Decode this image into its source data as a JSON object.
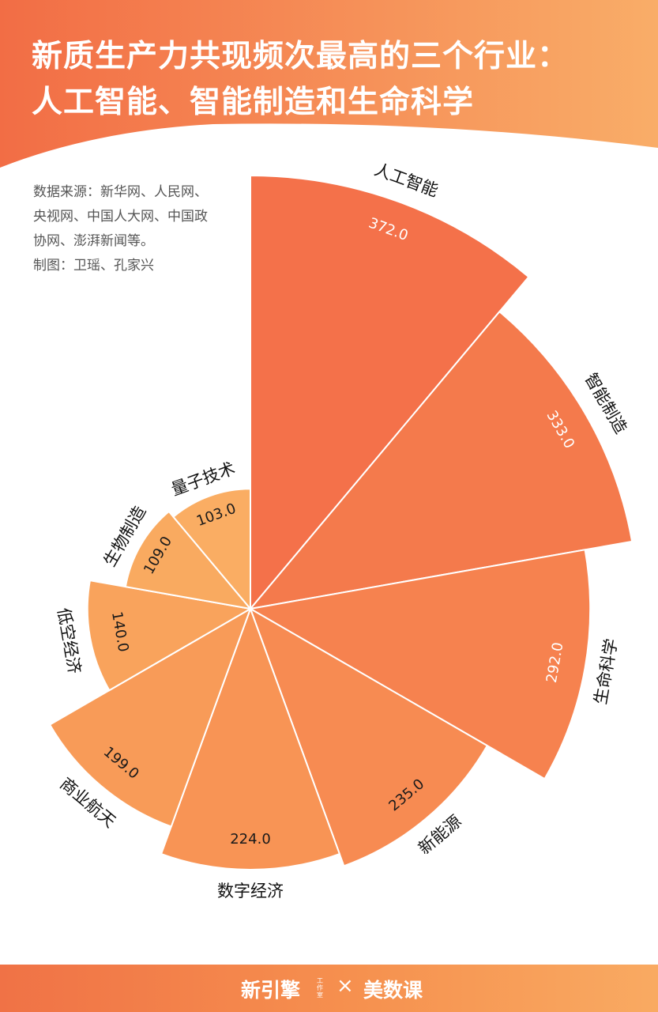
{
  "header": {
    "title_line1": "新质生产力共现频次最高的三个行业：",
    "title_line2": "人工智能、智能制造和生命科学",
    "gradient_start": "#f26d45",
    "gradient_end": "#f9ad68"
  },
  "source_note": {
    "lines": [
      "数据来源：新华网、人民网、央视网、中国人大网、中国政协网、澎湃新闻等。",
      "制图：卫瑶、孔家兴"
    ]
  },
  "chart_data": {
    "type": "nightingale-rose",
    "categories": [
      "人工智能",
      "智能制造",
      "生命科学",
      "新能源",
      "数字经济",
      "商业航天",
      "低空经济",
      "生物制造",
      "量子技术"
    ],
    "values": [
      372.0,
      333.0,
      292.0,
      235.0,
      224.0,
      199.0,
      140.0,
      109.0,
      103.0
    ],
    "value_labels": [
      "372.0",
      "333.0",
      "292.0",
      "235.0",
      "224.0",
      "199.0",
      "140.0",
      "109.0",
      "103.0"
    ],
    "colors": [
      "#f4714a",
      "#f47a4c",
      "#f6824f",
      "#f78b52",
      "#f89455",
      "#f89b58",
      "#f9a35c",
      "#f9aa60",
      "#faad63"
    ]
  },
  "footer": {
    "logo_left": "新引擎",
    "logo_left_sub": "工作室",
    "separator": "×",
    "logo_right": "美数课"
  }
}
